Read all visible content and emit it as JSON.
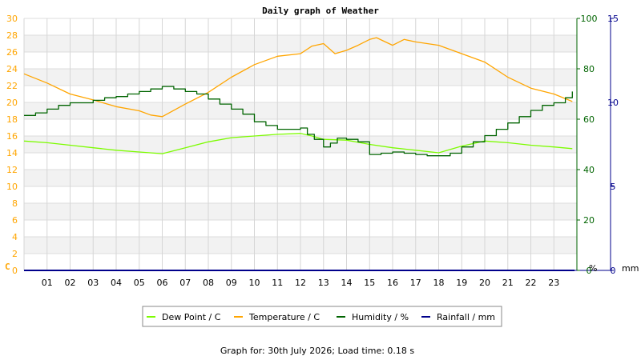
{
  "chart_data": {
    "type": "line",
    "title": "Daily graph of Weather",
    "x_ticks": [
      "01",
      "02",
      "03",
      "04",
      "05",
      "06",
      "07",
      "08",
      "09",
      "10",
      "11",
      "12",
      "13",
      "14",
      "15",
      "16",
      "17",
      "18",
      "19",
      "20",
      "21",
      "22",
      "23"
    ],
    "x_range": [
      0,
      24
    ],
    "axes": {
      "left": {
        "unit": "C",
        "range": [
          0,
          30
        ],
        "step": 2,
        "color": "#ffa500"
      },
      "right1": {
        "unit": "%",
        "range": [
          0,
          100
        ],
        "ticks": [
          0,
          20,
          40,
          60,
          80,
          100
        ],
        "color": "#006400"
      },
      "right2": {
        "unit": "mm",
        "range": [
          0,
          15
        ],
        "ticks": [
          0,
          5,
          10,
          15
        ],
        "color": "#00008b"
      }
    },
    "grid": true,
    "legend_position": "bottom-center",
    "series": [
      {
        "name": "Dew Point / C",
        "axis": "left",
        "color": "#7cfc00",
        "x": [
          0,
          1,
          2,
          3,
          4,
          5,
          6,
          7,
          8,
          9,
          10,
          11,
          12,
          12.5,
          13,
          14,
          15,
          16,
          17,
          18,
          19,
          20,
          21,
          22,
          23,
          23.8
        ],
        "values": [
          15.4,
          15.2,
          14.9,
          14.6,
          14.3,
          14.1,
          13.9,
          14.6,
          15.3,
          15.8,
          16.0,
          16.2,
          16.3,
          16.0,
          15.6,
          15.5,
          15.0,
          14.6,
          14.3,
          14.0,
          14.8,
          15.4,
          15.2,
          14.9,
          14.7,
          14.5
        ]
      },
      {
        "name": "Temperature / C",
        "axis": "left",
        "color": "#ffa500",
        "x": [
          0,
          1,
          2,
          3,
          4,
          5,
          5.5,
          6,
          7,
          8,
          9,
          10,
          11,
          12,
          12.5,
          13,
          13.5,
          14,
          14.5,
          15,
          15.3,
          16,
          16.5,
          17,
          18,
          19,
          20,
          21,
          22,
          23,
          23.8
        ],
        "values": [
          23.4,
          22.3,
          21.0,
          20.3,
          19.5,
          19.0,
          18.5,
          18.3,
          19.8,
          21.2,
          23.0,
          24.5,
          25.5,
          25.8,
          26.7,
          27.0,
          25.8,
          26.2,
          26.8,
          27.5,
          27.7,
          26.8,
          27.5,
          27.2,
          26.8,
          25.8,
          24.8,
          23.0,
          21.7,
          21.0,
          20.1
        ]
      },
      {
        "name": "Humidity / %",
        "axis": "right1",
        "color": "#006400",
        "step": true,
        "x": [
          0,
          0.5,
          1,
          1.5,
          2,
          3,
          3.5,
          4,
          4.5,
          5,
          5.5,
          6,
          6.5,
          7,
          7.5,
          8,
          8.5,
          9,
          9.5,
          10,
          10.5,
          11,
          11.5,
          12,
          12.3,
          12.6,
          13,
          13.3,
          13.6,
          14,
          14.5,
          15,
          15.5,
          16,
          16.5,
          17,
          17.5,
          18,
          18.5,
          19,
          19.5,
          20,
          20.5,
          21,
          21.5,
          22,
          22.5,
          23,
          23.5,
          23.8
        ],
        "values": [
          61.5,
          62.5,
          64,
          65.5,
          66.5,
          67.5,
          68.5,
          69,
          70,
          71,
          72,
          73,
          72,
          71,
          70,
          68,
          66,
          64,
          62,
          59,
          57.5,
          56,
          56,
          56.5,
          54,
          52,
          49,
          50.5,
          52.5,
          52,
          51,
          46,
          46.5,
          47,
          46.5,
          46,
          45.5,
          45.5,
          46.5,
          49,
          51,
          53.5,
          56,
          58.5,
          61,
          63.5,
          65.5,
          66.5,
          68.5,
          71
        ]
      },
      {
        "name": "Rainfall / mm",
        "axis": "right2",
        "color": "#00008b",
        "x": [
          0,
          23.9
        ],
        "values": [
          0,
          0
        ]
      }
    ],
    "footer": "Graph for: 30th July 2026; Load time: 0.18 s"
  }
}
